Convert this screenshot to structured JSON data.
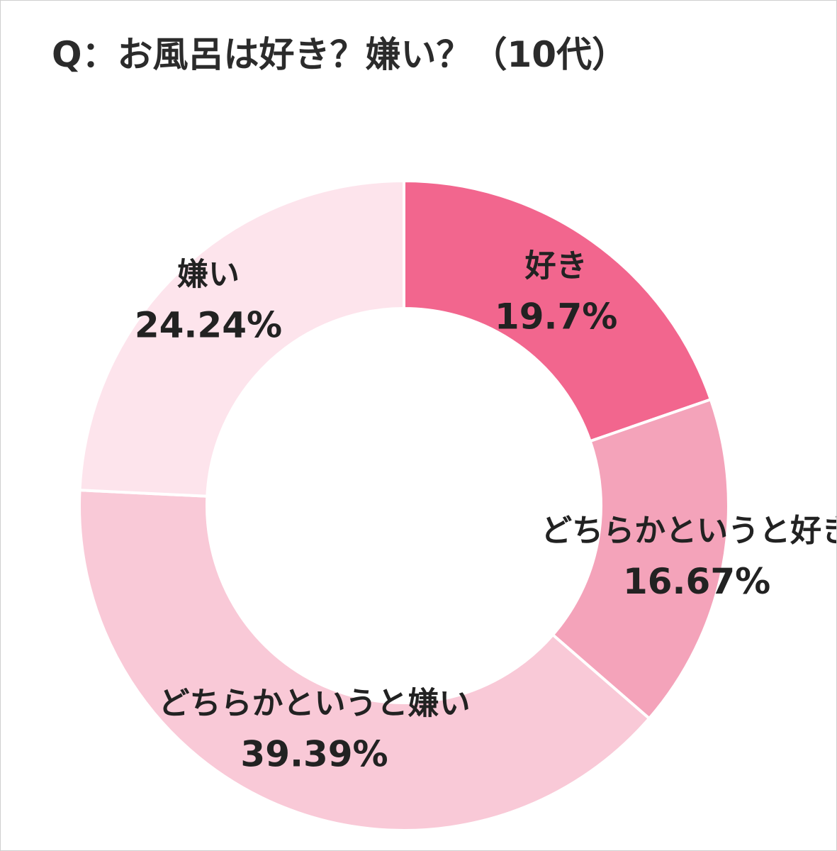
{
  "chart_data": {
    "type": "pie",
    "title": "Q：お風呂は好き？嫌い？（10代）",
    "donut": true,
    "legend": "none",
    "slices": [
      {
        "label": "好き",
        "value": 19.7,
        "value_label": "19.7%",
        "color": "#f2668e"
      },
      {
        "label": "どちらかというと好き",
        "value": 16.67,
        "value_label": "16.67%",
        "color": "#f4a3ba"
      },
      {
        "label": "どちらかというと嫌い",
        "value": 39.39,
        "value_label": "39.39%",
        "color": "#f9c9d7"
      },
      {
        "label": "嫌い",
        "value": 24.24,
        "value_label": "24.24%",
        "color": "#fde4ec"
      }
    ]
  }
}
